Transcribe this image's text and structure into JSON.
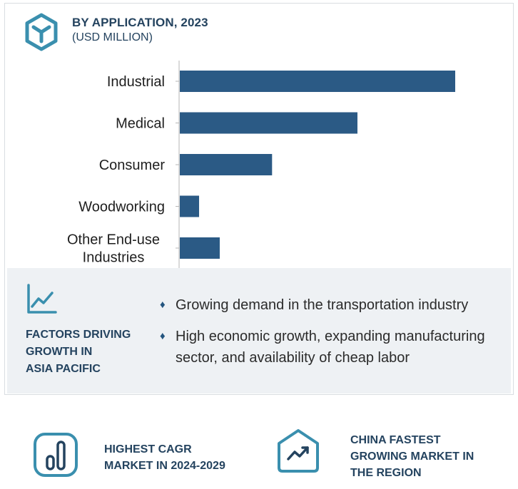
{
  "header": {
    "title": "BY APPLICATION, 2023",
    "subtitle": "(USD MILLION)",
    "logo_icon": "cube-logo-icon"
  },
  "chart_data": {
    "type": "bar",
    "orientation": "horizontal",
    "categories": [
      "Industrial",
      "Medical",
      "Consumer",
      "Woodworking",
      "Other End-use Industries"
    ],
    "category_lines": [
      [
        "Industrial"
      ],
      [
        "Medical"
      ],
      [
        "Consumer"
      ],
      [
        "Woodworking"
      ],
      [
        "Other End-use",
        "Industries"
      ]
    ],
    "values": [
      100,
      64.5,
      33.5,
      7,
      14.5
    ],
    "value_scale": "relative (no axis values printed)",
    "xlim": [
      0,
      100
    ],
    "grid": false,
    "bar_color": "#2b5a85"
  },
  "factors": {
    "icon": "trend-chart-icon",
    "title_lines": [
      "FACTORS DRIVING",
      "GROWTH IN",
      "ASIA PACIFIC"
    ],
    "items": [
      {
        "bullet": "♦",
        "text": "Growing demand in the transportation industry"
      },
      {
        "bullet": "♦",
        "text": "High economic growth, expanding manufacturing sector, and availability of cheap labor"
      }
    ]
  },
  "highlights": [
    {
      "icon": "bar-gauge-icon",
      "lines": [
        "HIGHEST CAGR",
        "MARKET IN 2024-2029"
      ]
    },
    {
      "icon": "growth-house-icon",
      "lines": [
        "CHINA FASTEST",
        "GROWING MARKET IN",
        "THE REGION"
      ]
    }
  ],
  "colors": {
    "accent": "#2b5a85",
    "heading": "#24435f",
    "icon_teal": "#3a8fae",
    "panel_bg": "#eef1f4"
  }
}
